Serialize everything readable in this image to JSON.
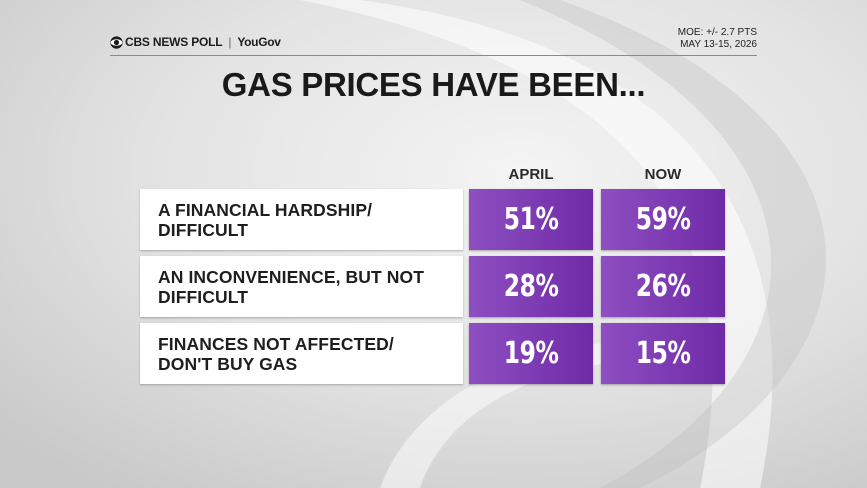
{
  "header": {
    "brand": "CBS NEWS POLL",
    "partner": "YouGov",
    "moe": "MOE: +/- 2.7 PTS",
    "dates": "MAY 13-15, 2026"
  },
  "chart_data": {
    "type": "table",
    "title": "GAS PRICES HAVE BEEN...",
    "columns": [
      "APRIL",
      "NOW"
    ],
    "rows": [
      {
        "label": "A FINANCIAL HARDSHIP/ DIFFICULT",
        "values": [
          51,
          59
        ],
        "display": [
          "51%",
          "59%"
        ]
      },
      {
        "label": "AN INCONVENIENCE, BUT NOT DIFFICULT",
        "values": [
          28,
          26
        ],
        "display": [
          "28%",
          "26%"
        ]
      },
      {
        "label": "FINANCES NOT AFFECTED/ DON'T BUY GAS",
        "values": [
          19,
          15
        ],
        "display": [
          "19%",
          "15%"
        ]
      }
    ]
  },
  "colors": {
    "cell_light": "#8e4fc2",
    "cell_dark": "#6f2aa6"
  }
}
